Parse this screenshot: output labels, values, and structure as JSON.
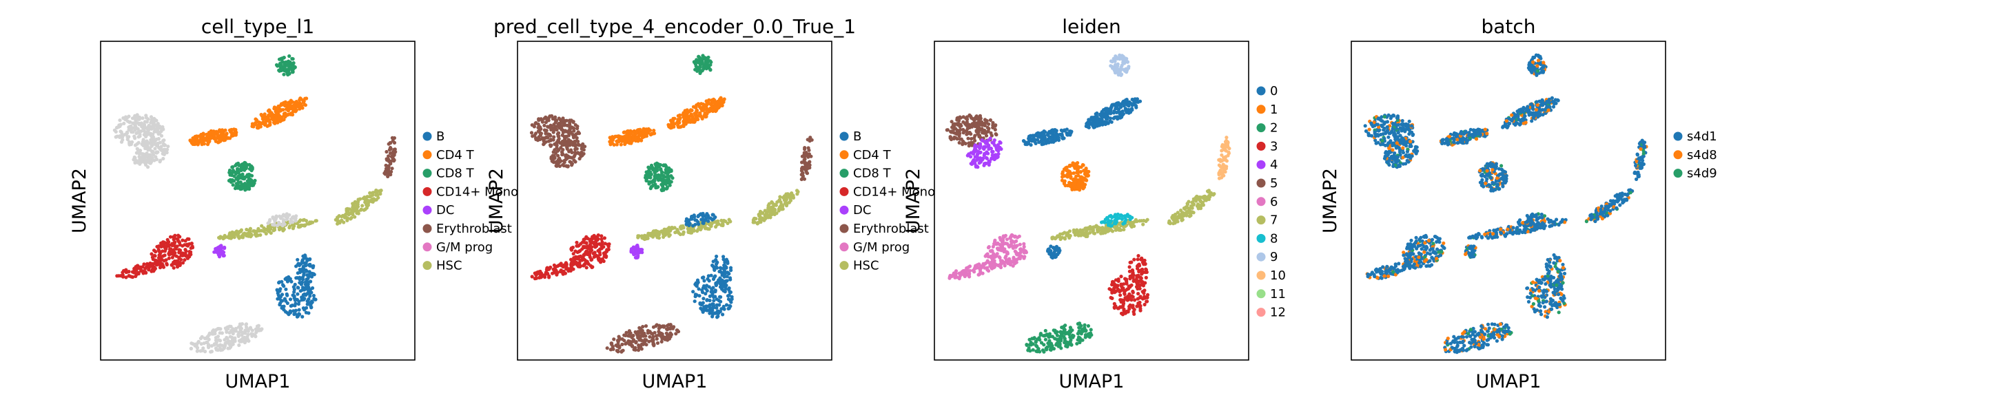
{
  "chart_data": [
    {
      "type": "scatter",
      "title": "cell_type_l1",
      "xlabel": "UMAP1",
      "ylabel": "UMAP2",
      "grid": false,
      "legend_position": "right",
      "legend": [
        {
          "label": "B",
          "color": "#1f77b4"
        },
        {
          "label": "CD4 T",
          "color": "#ff7f0e"
        },
        {
          "label": "CD8 T",
          "color": "#279e68"
        },
        {
          "label": "CD14+ Mono",
          "color": "#d62728"
        },
        {
          "label": "DC",
          "color": "#aa40fc"
        },
        {
          "label": "Erythroblast",
          "color": "#8c564b"
        },
        {
          "label": "G/M prog",
          "color": "#e377c2"
        },
        {
          "label": "HSC",
          "color": "#b5bd61"
        }
      ],
      "background_color": "#d3d3d3",
      "regions": {
        "top_cluster": "CD8 T",
        "upper_arm": "CD4 T",
        "left_blob": "none",
        "mid_blob": "CD8 T",
        "long_arm_tip": "Erythroblast",
        "long_arm": "HSC",
        "left_stream": "CD14+ Mono",
        "small_dots": "DC",
        "lower_right": "B",
        "bottom_blob": "none"
      }
    },
    {
      "type": "scatter",
      "title": "pred_cell_type_4_encoder_0.0_True_1",
      "xlabel": "UMAP1",
      "ylabel": "UMAP2",
      "grid": false,
      "legend_position": "right",
      "legend": [
        {
          "label": "B",
          "color": "#1f77b4"
        },
        {
          "label": "CD4 T",
          "color": "#ff7f0e"
        },
        {
          "label": "CD8 T",
          "color": "#279e68"
        },
        {
          "label": "CD14+ Mono",
          "color": "#d62728"
        },
        {
          "label": "DC",
          "color": "#aa40fc"
        },
        {
          "label": "Erythroblast",
          "color": "#8c564b"
        },
        {
          "label": "G/M prog",
          "color": "#e377c2"
        },
        {
          "label": "HSC",
          "color": "#b5bd61"
        }
      ],
      "regions": {
        "top_cluster": "CD8 T",
        "upper_arm": "CD4 T",
        "left_blob": "Erythroblast",
        "mid_blob": "CD8 T",
        "long_arm_tip": "Erythroblast",
        "long_arm": "HSC",
        "left_stream": "CD14+ Mono",
        "small_dots": "DC",
        "lower_right": "B",
        "bottom_blob": "Erythroblast"
      }
    },
    {
      "type": "scatter",
      "title": "leiden",
      "xlabel": "UMAP1",
      "ylabel": "UMAP2",
      "grid": false,
      "legend_position": "right",
      "legend": [
        {
          "label": "0",
          "color": "#1f77b4"
        },
        {
          "label": "1",
          "color": "#ff7f0e"
        },
        {
          "label": "2",
          "color": "#279e68"
        },
        {
          "label": "3",
          "color": "#d62728"
        },
        {
          "label": "4",
          "color": "#aa40fc"
        },
        {
          "label": "5",
          "color": "#8c564b"
        },
        {
          "label": "6",
          "color": "#e377c2"
        },
        {
          "label": "7",
          "color": "#b5bd61"
        },
        {
          "label": "8",
          "color": "#17becf"
        },
        {
          "label": "9",
          "color": "#aec7e8"
        },
        {
          "label": "10",
          "color": "#ffbb78"
        },
        {
          "label": "11",
          "color": "#98df8a"
        },
        {
          "label": "12",
          "color": "#ff9896"
        }
      ],
      "regions": {
        "top_cluster": "9",
        "upper_arm": "0",
        "left_blob": "5",
        "left_blob_lower": "4",
        "mid_blob": "1",
        "long_arm_tip": "10",
        "long_arm": "7",
        "arm_join": "8",
        "left_stream": "6",
        "lower_right": "3",
        "bottom_blob": "2"
      }
    },
    {
      "type": "scatter",
      "title": "batch",
      "xlabel": "UMAP1",
      "ylabel": "UMAP2",
      "grid": false,
      "legend_position": "right",
      "legend": [
        {
          "label": "s4d1",
          "color": "#1f77b4"
        },
        {
          "label": "s4d8",
          "color": "#ff7f0e"
        },
        {
          "label": "s4d9",
          "color": "#279e68"
        }
      ],
      "dominant_series": "s4d1"
    }
  ]
}
